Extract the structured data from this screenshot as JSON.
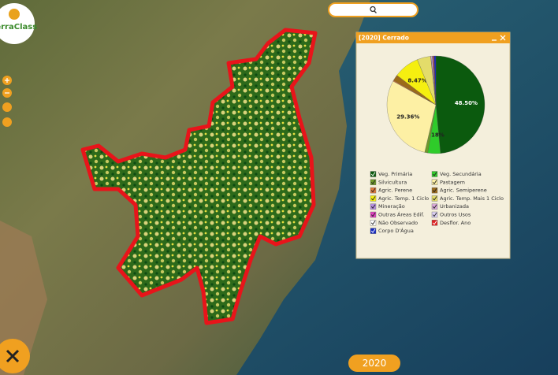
{
  "logo": "TerraClass",
  "year_button": "2020",
  "chart_data": {
    "type": "pie",
    "title": "[2020] Cerrado",
    "categories": [
      "Veg. Primária",
      "Veg. Secundária",
      "Silvicultura",
      "Pastagem",
      "Agric. Perene",
      "Agric. Semiperene",
      "Agric. Temp. 1 Ciclo",
      "Agric. Temp. Mais 1 Ciclo",
      "Mineração",
      "Urbanizada",
      "Outras Áreas Edif.",
      "Outros Usos",
      "Não Observado",
      "Desflor. Ano",
      "Corpo D'Água"
    ],
    "values": [
      48.5,
      4.18,
      1.0,
      29.36,
      0.3,
      2.0,
      8.47,
      4.5,
      0.1,
      0.4,
      0.05,
      0.2,
      0.05,
      0.3,
      0.59
    ],
    "value_labels": [
      "48.50%",
      "4.18%",
      null,
      "29.36%",
      null,
      null,
      "8.47%",
      null,
      null,
      null,
      null,
      null,
      null,
      null,
      null
    ],
    "colors": [
      "#0b5a0e",
      "#2fcc2a",
      "#6f9a2a",
      "#fdf0a4",
      "#e07a3c",
      "#9b6a1a",
      "#f5ef10",
      "#e3dc6a",
      "#b58ee0",
      "#d8a8d8",
      "#e040c0",
      "#dcd0f4",
      "#ffffff",
      "#e02020",
      "#1428c0"
    ]
  }
}
